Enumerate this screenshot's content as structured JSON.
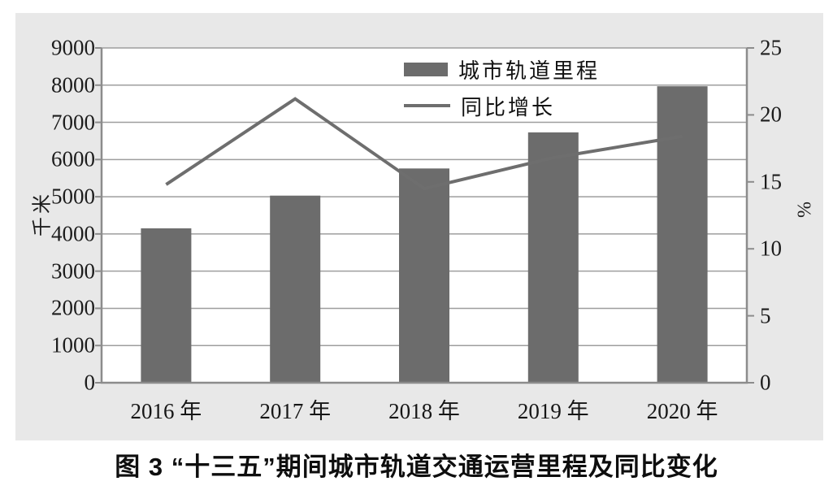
{
  "caption": "图 3  “十三五”期间城市轨道交通运营里程及同比变化",
  "chart_data": {
    "type": "bar",
    "subtype": "bar+line combo",
    "categories": [
      "2016 年",
      "2017 年",
      "2018 年",
      "2019 年",
      "2020 年"
    ],
    "series": [
      {
        "name": "城市轨道里程",
        "type": "bar",
        "axis": "left",
        "unit": "千米",
        "values": [
          4150,
          5030,
          5760,
          6730,
          7970
        ]
      },
      {
        "name": "同比增长",
        "type": "line",
        "axis": "right",
        "unit": "%",
        "values": [
          14.8,
          21.2,
          14.5,
          16.8,
          18.4
        ]
      }
    ],
    "left_axis": {
      "title": "千米",
      "min": 0,
      "max": 9000,
      "step": 1000,
      "ticks": [
        "0",
        "1000",
        "2000",
        "3000",
        "4000",
        "5000",
        "6000",
        "7000",
        "8000",
        "9000"
      ]
    },
    "right_axis": {
      "title": "%",
      "min": 0,
      "max": 25,
      "step": 5,
      "ticks": [
        "0",
        "5",
        "10",
        "15",
        "20",
        "25"
      ]
    },
    "grid": true,
    "legend_position": "top-center-inside",
    "colors": {
      "bar": "#6c6c6c",
      "line": "#6e6e6e",
      "panel": "#e8e8e8",
      "plot_bg": "#ffffff",
      "gridline": "#9e9e9e",
      "axis": "#8c8c8c",
      "text": "#1c1c1c"
    }
  }
}
